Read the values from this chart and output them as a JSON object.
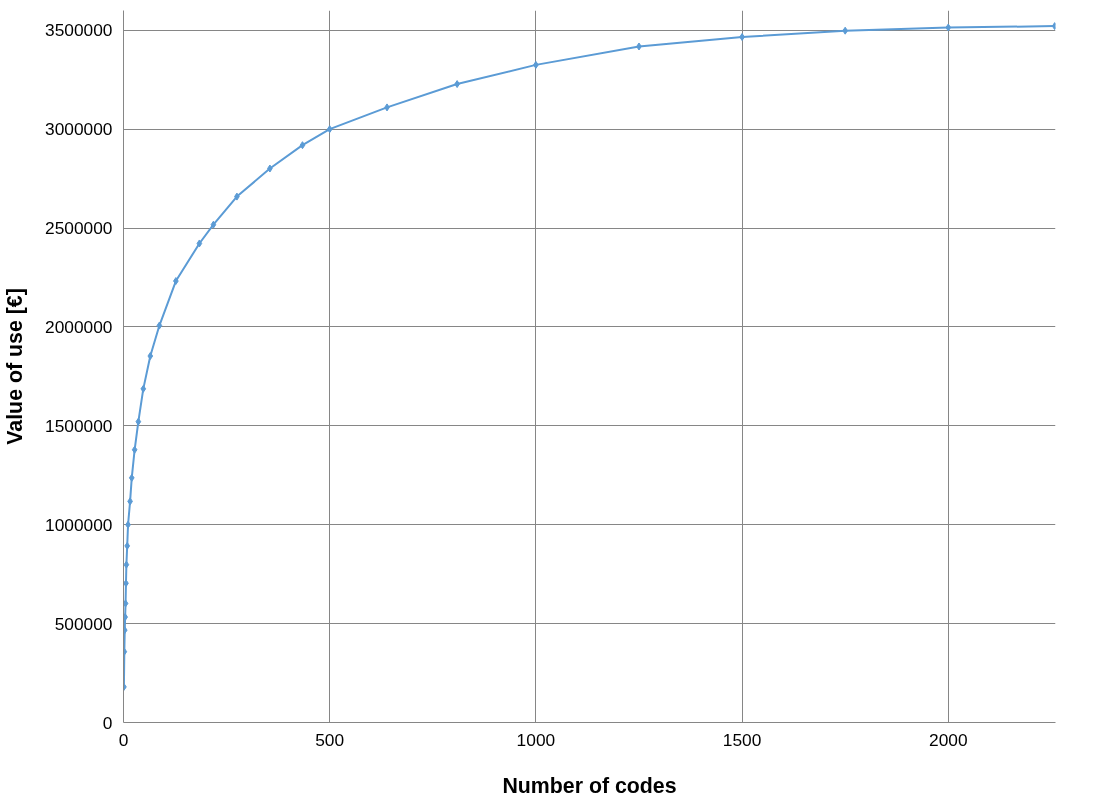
{
  "chart_data": {
    "type": "line",
    "xlabel": "Number of codes",
    "ylabel": "Value of use [€]",
    "xlim": [
      0,
      2260
    ],
    "ylim": [
      0,
      3600000
    ],
    "xticks": [
      0,
      500,
      1000,
      1500,
      2000
    ],
    "yticks": [
      0,
      500000,
      1000000,
      1500000,
      2000000,
      2500000,
      3000000,
      3500000
    ],
    "grid": true,
    "marker": "diamond",
    "line_style": "solid",
    "series": [
      {
        "color": "#5b9bd5",
        "x": [
          1,
          2,
          3,
          4,
          5,
          6,
          7,
          9,
          11,
          16,
          20,
          27,
          36,
          48,
          65,
          87,
          127,
          184,
          218,
          275,
          355,
          434,
          500,
          639,
          809,
          1000,
          1250,
          1500,
          1750,
          2000,
          2258
        ],
        "values": [
          180000,
          358000,
          467000,
          533000,
          602000,
          704000,
          798000,
          893000,
          1000000,
          1118000,
          1237000,
          1379000,
          1521000,
          1687000,
          1853000,
          2007000,
          2232000,
          2422000,
          2517000,
          2659000,
          2801000,
          2919000,
          3000000,
          3110000,
          3228000,
          3325000,
          3418000,
          3466000,
          3498000,
          3514000,
          3521000
        ]
      }
    ]
  }
}
